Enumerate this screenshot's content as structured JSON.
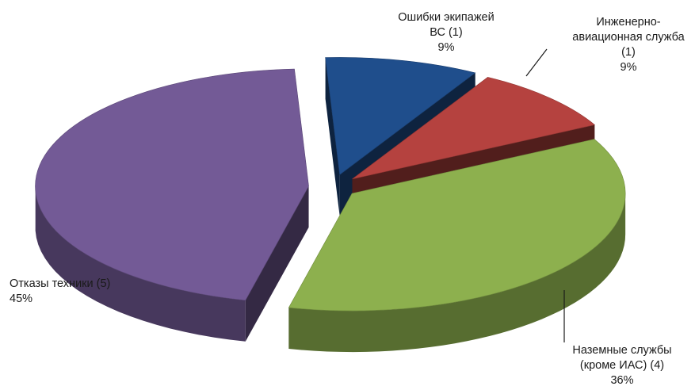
{
  "chart_data": {
    "type": "pie",
    "style": "3d-exploded",
    "title": "",
    "slices": [
      {
        "label_lines": [
          "Ошибки экипажей",
          "ВС (1)",
          "9%"
        ],
        "count": 1,
        "percent": 9,
        "color": "#1f4e8c"
      },
      {
        "label_lines": [
          "Инженерно-",
          "авиационная служба",
          "(1)",
          "9%"
        ],
        "count": 1,
        "percent": 9,
        "color": "#b5423f"
      },
      {
        "label_lines": [
          "Наземные службы",
          "(кроме ИАС) (4)",
          "36%"
        ],
        "count": 4,
        "percent": 36,
        "color": "#8db04e"
      },
      {
        "label_lines": [
          "Отказы техники (5)",
          "45%"
        ],
        "count": 5,
        "percent": 45,
        "color": "#735a96"
      }
    ]
  }
}
